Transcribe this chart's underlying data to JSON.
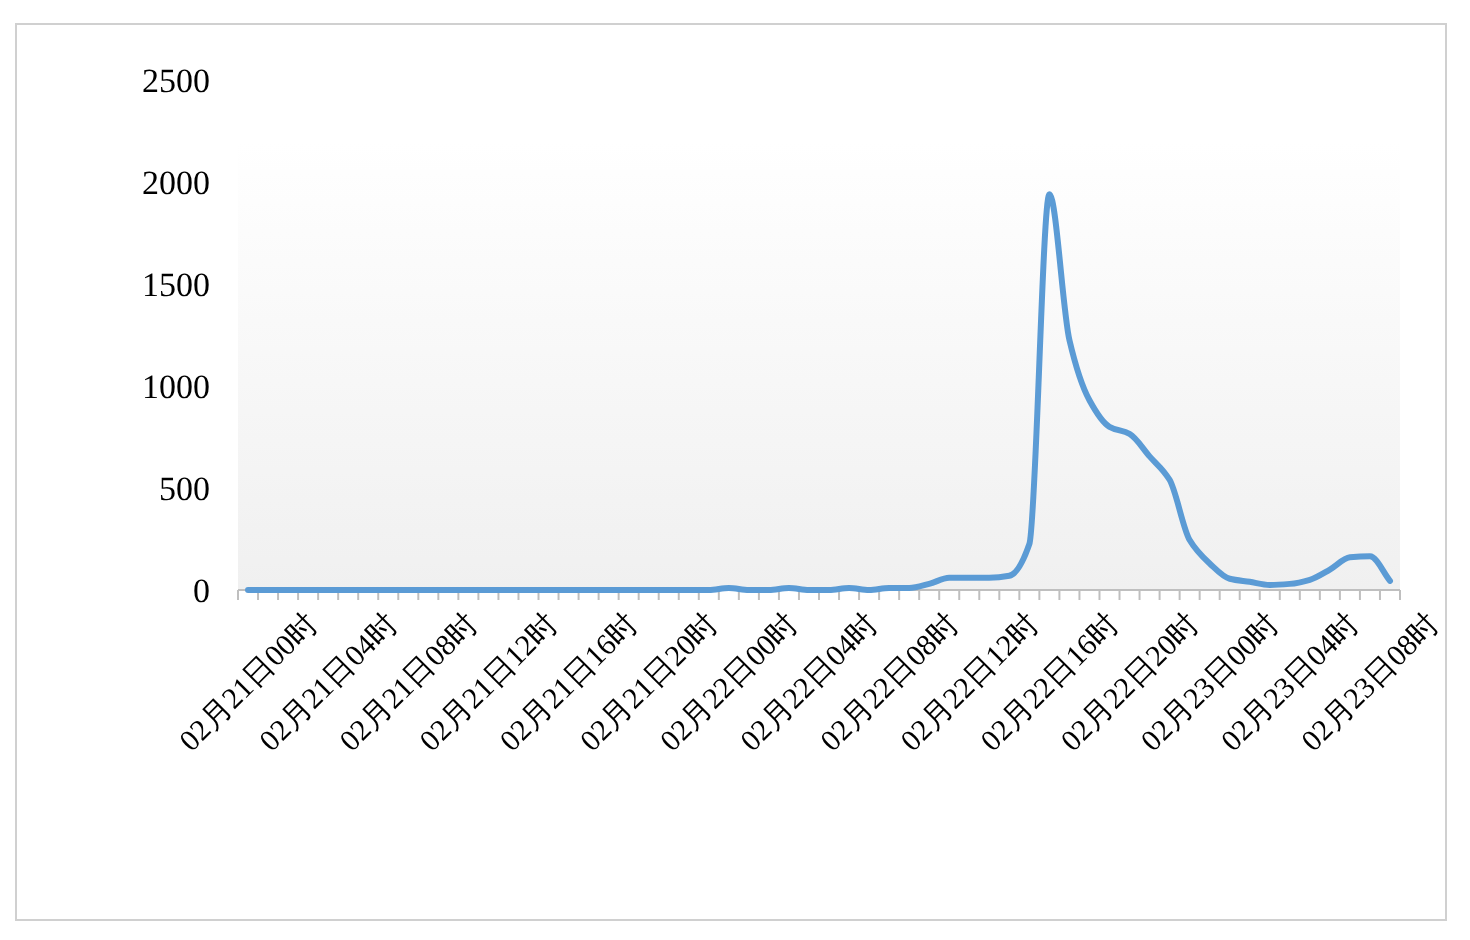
{
  "chart_data": {
    "type": "line",
    "categories": [
      "02月21日00时",
      null,
      null,
      null,
      "02月21日04时",
      null,
      null,
      null,
      "02月21日08时",
      null,
      null,
      null,
      "02月21日12时",
      null,
      null,
      null,
      "02月21日16时",
      null,
      null,
      null,
      "02月21日20时",
      null,
      null,
      null,
      "02月22日00时",
      null,
      null,
      null,
      "02月22日04时",
      null,
      null,
      null,
      "02月22日08时",
      null,
      null,
      null,
      "02月22日12时",
      null,
      null,
      null,
      "02月22日16时",
      null,
      null,
      null,
      "02月22日20时",
      null,
      null,
      null,
      "02月23日00时",
      null,
      null,
      null,
      "02月23日04时",
      null,
      null,
      null,
      "02月23日08时",
      null
    ],
    "series": [
      {
        "color": "#5b9bd5",
        "values": [
          0,
          0,
          0,
          0,
          0,
          0,
          0,
          0,
          0,
          0,
          0,
          0,
          0,
          0,
          0,
          0,
          0,
          0,
          0,
          0,
          0,
          0,
          0,
          0,
          10,
          0,
          0,
          10,
          0,
          0,
          10,
          0,
          10,
          10,
          30,
          60,
          60,
          60,
          70,
          225,
          1940,
          1225,
          930,
          800,
          765,
          655,
          540,
          245,
          130,
          55,
          40,
          25,
          30,
          50,
          100,
          160,
          165,
          45
        ]
      }
    ],
    "ylim": [
      0,
      2500
    ],
    "yticks": [
      0,
      500,
      1000,
      1500,
      2000,
      2500
    ],
    "grid": false,
    "marker": "none",
    "line_style": "solid"
  }
}
